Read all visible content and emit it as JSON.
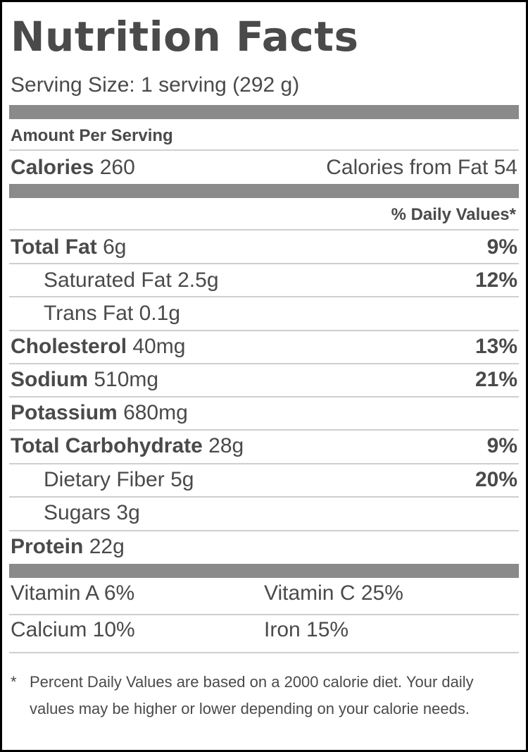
{
  "header": {
    "title": "Nutrition Facts",
    "serving_size": "Serving Size: 1 serving (292 g)"
  },
  "amount_per_serving": "Amount Per Serving",
  "calories": {
    "label": "Calories",
    "value": "260",
    "from_fat": "Calories from Fat 54"
  },
  "daily_values_header": "% Daily Values*",
  "nutrients": [
    {
      "name": "Total Fat",
      "amount": "6g",
      "dv": "9%"
    },
    {
      "name": "Saturated Fat",
      "amount": "2.5g",
      "dv": "12%"
    },
    {
      "name": "Trans Fat",
      "amount": "0.1g",
      "dv": ""
    },
    {
      "name": "Cholesterol",
      "amount": "40mg",
      "dv": "13%"
    },
    {
      "name": "Sodium",
      "amount": "510mg",
      "dv": "21%"
    },
    {
      "name": "Potassium",
      "amount": "680mg",
      "dv": ""
    },
    {
      "name": "Total Carbohydrate",
      "amount": "28g",
      "dv": "9%"
    },
    {
      "name": "Dietary Fiber",
      "amount": "5g",
      "dv": "20%"
    },
    {
      "name": "Sugars",
      "amount": "3g",
      "dv": ""
    },
    {
      "name": "Protein",
      "amount": "22g",
      "dv": ""
    }
  ],
  "vitamins": {
    "vitamin_a": "Vitamin A 6%",
    "vitamin_c": "Vitamin C 25%",
    "calcium": "Calcium 10%",
    "iron": "Iron 15%"
  },
  "footnote": {
    "star": "*",
    "text": "Percent Daily Values are based on a 2000 calorie diet. Your daily values may be higher or lower depending on your calorie needs."
  },
  "colors": {
    "text": "#4a4a4a",
    "bar": "#8a8a8a",
    "rule": "#cfcfcf",
    "border": "#000000"
  }
}
